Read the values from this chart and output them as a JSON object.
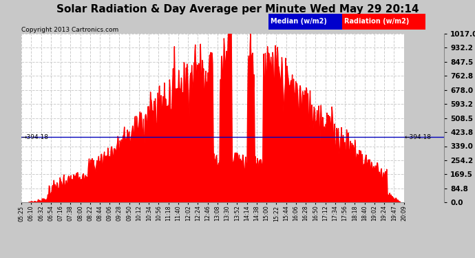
{
  "title": "Solar Radiation & Day Average per Minute Wed May 29 20:14",
  "copyright": "Copyright 2013 Cartronics.com",
  "yticks": [
    0.0,
    84.8,
    169.5,
    254.2,
    339.0,
    423.8,
    508.5,
    593.2,
    678.0,
    762.8,
    847.5,
    932.2,
    1017.0
  ],
  "median_value": 394.18,
  "ymin": 0.0,
  "ymax": 1017.0,
  "xtick_labels": [
    "05:25",
    "06:10",
    "06:32",
    "06:54",
    "07:16",
    "07:38",
    "08:00",
    "08:22",
    "08:44",
    "09:06",
    "09:28",
    "09:50",
    "10:12",
    "10:34",
    "10:56",
    "11:18",
    "11:40",
    "12:02",
    "12:24",
    "12:46",
    "13:08",
    "13:30",
    "13:52",
    "14:14",
    "14:38",
    "15:00",
    "15:22",
    "15:44",
    "16:06",
    "16:28",
    "16:50",
    "17:12",
    "17:34",
    "17:56",
    "18:18",
    "18:40",
    "19:02",
    "19:24",
    "19:47",
    "20:09"
  ],
  "bg_color": "#ffffff",
  "fill_color": "#ff0000",
  "median_line_color": "#0000bb",
  "grid_color": "#cccccc",
  "title_fontsize": 11,
  "fig_bg": "#c8c8c8",
  "legend_median_color": "#0000cc",
  "legend_radiation_color": "#ff0000",
  "n_dense": 880
}
